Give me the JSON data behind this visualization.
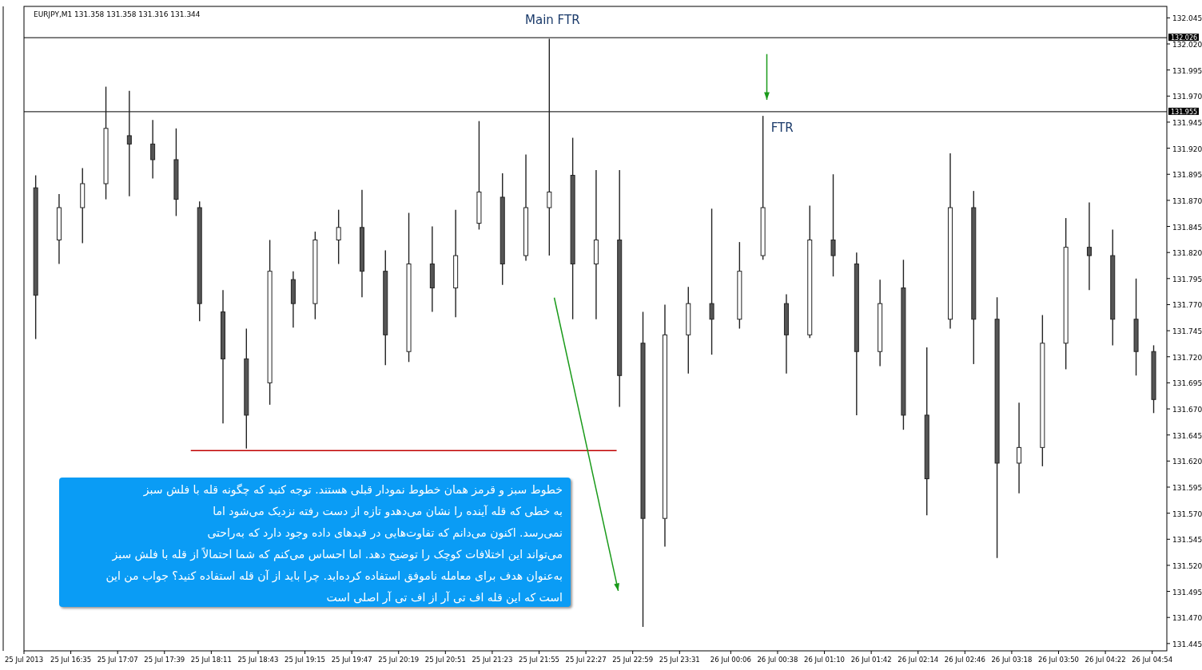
{
  "chart_data": {
    "type": "candlestick",
    "title": "EURJPY,M1  131.358 131.358 131.316 131.344",
    "x": [
      "2013-07-25T16:11",
      "2013-07-25T16:27",
      "2013-07-25T16:43",
      "2013-07-25T16:59",
      "2013-07-25T17:15",
      "2013-07-25T17:31",
      "2013-07-25T17:47",
      "2013-07-25T18:03",
      "2013-07-25T18:19",
      "2013-07-25T18:35",
      "2013-07-25T18:51",
      "2013-07-25T19:07",
      "2013-07-25T19:22",
      "2013-07-25T19:38",
      "2013-07-25T19:54",
      "2013-07-25T20:10",
      "2013-07-25T20:26",
      "2013-07-25T20:42",
      "2013-07-25T20:58",
      "2013-07-25T21:14",
      "2013-07-25T21:30",
      "2013-07-25T21:46",
      "2013-07-25T22:02",
      "2013-07-25T22:18",
      "2013-07-25T22:34",
      "2013-07-25T22:50",
      "2013-07-25T23:06",
      "2013-07-25T23:21",
      "2013-07-25T23:37",
      "2013-07-25T23:53",
      "2013-07-26T00:12",
      "2013-07-26T00:28",
      "2013-07-26T00:44",
      "2013-07-26T01:00",
      "2013-07-26T01:16",
      "2013-07-26T01:32",
      "2013-07-26T01:48",
      "2013-07-26T02:04",
      "2013-07-26T02:20",
      "2013-07-26T02:36",
      "2013-07-26T02:52",
      "2013-07-26T03:08",
      "2013-07-26T03:23",
      "2013-07-26T03:39",
      "2013-07-26T03:55",
      "2013-07-26T04:11",
      "2013-07-26T04:27",
      "2013-07-26T04:43",
      "2013-07-26T04:55"
    ],
    "ohlc": [
      [
        131.882,
        131.894,
        131.737,
        131.779
      ],
      [
        131.832,
        131.876,
        131.809,
        131.863
      ],
      [
        131.863,
        131.901,
        131.829,
        131.886
      ],
      [
        131.886,
        131.979,
        131.871,
        131.939
      ],
      [
        131.932,
        131.975,
        131.874,
        131.924
      ],
      [
        131.924,
        131.947,
        131.891,
        131.909
      ],
      [
        131.909,
        131.939,
        131.855,
        131.871
      ],
      [
        131.863,
        131.869,
        131.754,
        131.771
      ],
      [
        131.763,
        131.784,
        131.656,
        131.718
      ],
      [
        131.718,
        131.747,
        131.632,
        131.664
      ],
      [
        131.695,
        131.832,
        131.674,
        131.802
      ],
      [
        131.794,
        131.802,
        131.748,
        131.771
      ],
      [
        131.771,
        131.84,
        131.756,
        131.832
      ],
      [
        131.832,
        131.861,
        131.809,
        131.844
      ],
      [
        131.844,
        131.88,
        131.777,
        131.802
      ],
      [
        131.802,
        131.822,
        131.712,
        131.741
      ],
      [
        131.725,
        131.858,
        131.715,
        131.809
      ],
      [
        131.809,
        131.845,
        131.763,
        131.786
      ],
      [
        131.786,
        131.861,
        131.758,
        131.817
      ],
      [
        131.848,
        131.946,
        131.842,
        131.878
      ],
      [
        131.873,
        131.896,
        131.789,
        131.809
      ],
      [
        131.817,
        131.914,
        131.812,
        131.863
      ],
      [
        131.863,
        132.025,
        131.817,
        131.878
      ],
      [
        131.894,
        131.93,
        131.756,
        131.809
      ],
      [
        131.809,
        131.899,
        131.756,
        131.832
      ],
      [
        131.832,
        131.899,
        131.672,
        131.702
      ],
      [
        131.733,
        131.763,
        131.461,
        131.565
      ],
      [
        131.565,
        131.77,
        131.538,
        131.741
      ],
      [
        131.741,
        131.787,
        131.704,
        131.771
      ],
      [
        131.771,
        131.862,
        131.722,
        131.756
      ],
      [
        131.756,
        131.83,
        131.747,
        131.802
      ],
      [
        131.817,
        131.951,
        131.813,
        131.863
      ],
      [
        131.771,
        131.78,
        131.704,
        131.741
      ],
      [
        131.741,
        131.865,
        131.738,
        131.832
      ],
      [
        131.832,
        131.895,
        131.797,
        131.817
      ],
      [
        131.809,
        131.82,
        131.664,
        131.725
      ],
      [
        131.725,
        131.794,
        131.711,
        131.771
      ],
      [
        131.786,
        131.813,
        131.65,
        131.664
      ],
      [
        131.664,
        131.729,
        131.568,
        131.603
      ],
      [
        131.756,
        131.915,
        131.747,
        131.863
      ],
      [
        131.863,
        131.879,
        131.713,
        131.756
      ],
      [
        131.756,
        131.777,
        131.527,
        131.618
      ],
      [
        131.618,
        131.676,
        131.589,
        131.633
      ],
      [
        131.633,
        131.76,
        131.615,
        131.733
      ],
      [
        131.733,
        131.853,
        131.708,
        131.825
      ],
      [
        131.825,
        131.868,
        131.784,
        131.817
      ],
      [
        131.817,
        131.842,
        131.731,
        131.756
      ],
      [
        131.756,
        131.795,
        131.702,
        131.725
      ],
      [
        131.725,
        131.731,
        131.666,
        131.679
      ]
    ],
    "series": [
      {
        "type": "line",
        "color": "#c00000",
        "x": [
          "2013-07-25T17:57",
          "2013-07-25T22:48"
        ],
        "values": [
          131.63,
          131.63
        ]
      }
    ],
    "xlim": [
      "2013-07-25T16:03",
      "2013-07-26T05:04"
    ],
    "xticks": [
      {
        "value": "2013-07-25T16:03",
        "label": "25 Jul 2013"
      },
      {
        "value": "2013-07-25T16:35",
        "label": "25 Jul 16:35"
      },
      {
        "value": "2013-07-25T17:07",
        "label": "25 Jul 17:07"
      },
      {
        "value": "2013-07-25T17:39",
        "label": "25 Jul 17:39"
      },
      {
        "value": "2013-07-25T18:11",
        "label": "25 Jul 18:11"
      },
      {
        "value": "2013-07-25T18:43",
        "label": "25 Jul 18:43"
      },
      {
        "value": "2013-07-25T19:15",
        "label": "25 Jul 19:15"
      },
      {
        "value": "2013-07-25T19:47",
        "label": "25 Jul 19:47"
      },
      {
        "value": "2013-07-25T20:19",
        "label": "25 Jul 20:19"
      },
      {
        "value": "2013-07-25T20:51",
        "label": "25 Jul 20:51"
      },
      {
        "value": "2013-07-25T21:23",
        "label": "25 Jul 21:23"
      },
      {
        "value": "2013-07-25T21:55",
        "label": "25 Jul 21:55"
      },
      {
        "value": "2013-07-25T22:27",
        "label": "25 Jul 22:27"
      },
      {
        "value": "2013-07-25T22:59",
        "label": "25 Jul 22:59"
      },
      {
        "value": "2013-07-25T23:31",
        "label": "25 Jul 23:31"
      },
      {
        "value": "2013-07-26T00:06",
        "label": "26 Jul 00:06"
      },
      {
        "value": "2013-07-26T00:38",
        "label": "26 Jul 00:38"
      },
      {
        "value": "2013-07-26T01:10",
        "label": "26 Jul 01:10"
      },
      {
        "value": "2013-07-26T01:42",
        "label": "26 Jul 01:42"
      },
      {
        "value": "2013-07-26T02:14",
        "label": "26 Jul 02:14"
      },
      {
        "value": "2013-07-26T02:46",
        "label": "26 Jul 02:46"
      },
      {
        "value": "2013-07-26T03:18",
        "label": "26 Jul 03:18"
      },
      {
        "value": "2013-07-26T03:50",
        "label": "26 Jul 03:50"
      },
      {
        "value": "2013-07-26T04:22",
        "label": "26 Jul 04:22"
      },
      {
        "value": "2013-07-26T04:54",
        "label": "26 Jul 04:54"
      }
    ],
    "ylim": [
      131.438,
      132.056
    ],
    "yticks": [
      {
        "value": 131.445,
        "label": "131.445"
      },
      {
        "value": 131.47,
        "label": "131.470"
      },
      {
        "value": 131.495,
        "label": "131.495"
      },
      {
        "value": 131.52,
        "label": "131.520"
      },
      {
        "value": 131.545,
        "label": "131.545"
      },
      {
        "value": 131.57,
        "label": "131.570"
      },
      {
        "value": 131.595,
        "label": "131.595"
      },
      {
        "value": 131.62,
        "label": "131.620"
      },
      {
        "value": 131.645,
        "label": "131.645"
      },
      {
        "value": 131.67,
        "label": "131.670"
      },
      {
        "value": 131.695,
        "label": "131.695"
      },
      {
        "value": 131.72,
        "label": "131.720"
      },
      {
        "value": 131.745,
        "label": "131.745"
      },
      {
        "value": 131.77,
        "label": "131.770"
      },
      {
        "value": 131.795,
        "label": "131.795"
      },
      {
        "value": 131.82,
        "label": "131.820"
      },
      {
        "value": 131.845,
        "label": "131.845"
      },
      {
        "value": 131.87,
        "label": "131.870"
      },
      {
        "value": 131.895,
        "label": "131.895"
      },
      {
        "value": 131.92,
        "label": "131.920"
      },
      {
        "value": 131.945,
        "label": "131.945"
      },
      {
        "value": 131.97,
        "label": "131.970"
      },
      {
        "value": 131.995,
        "label": "131.995"
      },
      {
        "value": 132.02,
        "label": "132.020"
      },
      {
        "value": 132.045,
        "label": "132.045"
      }
    ],
    "ref_lines": [
      {
        "axis": "y",
        "value": 132.026,
        "label": "132.026",
        "color": "#000000"
      },
      {
        "axis": "y",
        "value": 131.955,
        "label": "131.955",
        "color": "#000000"
      }
    ],
    "annotations": [
      {
        "text": "Main FTR",
        "x": "2013-07-25T22:02",
        "y": 132.025
      },
      {
        "text": "FTR",
        "x": "2013-07-26T00:28",
        "y": 131.951
      },
      "خطوط سبز و قرمز  همان خطوط نمودار  قبلی هستند. توجه کنید که چگونه قله با فلش سبز\nبه خطی که قله آینده را نشان می‌دهدو تازه از دست رفته نزدیک می‌شود اما\nنمی‌رسد. اکنون می‌دانم که  تفاوت‌هایی در فیدهای داده وجود دارد که به‌راحتی\nمی‌تواند این  اختلافات کوچک را توضیح دهد. اما احساس می‌کنم که شما احتمالاً از قله با فلش سبز\nبه‌عنوان هدف برای معامله  ناموفق استفاده کرده‌اید. چرا باید از آن قله استفاده کنید؟ جواب من این\nاست که این قله اف تی آر از اف تی آر اصلی است"
    ],
    "grid": false
  }
}
